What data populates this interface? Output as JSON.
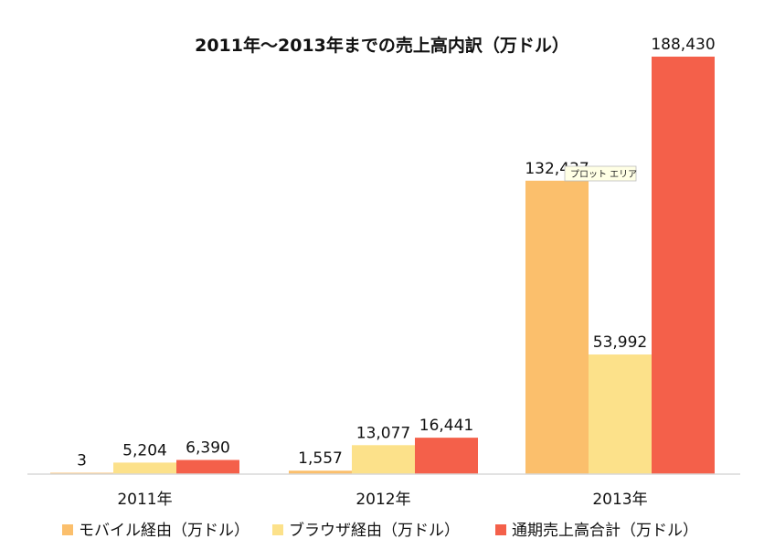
{
  "chart_data": {
    "type": "bar",
    "title": "2011年～2013年までの売上高内訳（万ドル）",
    "categories": [
      "2011年",
      "2012年",
      "2013年"
    ],
    "series": [
      {
        "name": "モバイル経由（万ドル）",
        "values": [
          3,
          1557,
          132437
        ],
        "color": "#FBBF6C"
      },
      {
        "name": "ブラウザ経由（万ドル）",
        "values": [
          5204,
          13077,
          53992
        ],
        "color": "#FCE18A"
      },
      {
        "name": "通期売上高合計（万ドル）",
        "values": [
          6390,
          16441,
          188430
        ],
        "color": "#F4604A"
      }
    ],
    "value_labels": [
      [
        "3",
        "5,204",
        "6,390"
      ],
      [
        "1,557",
        "13,077",
        "16,441"
      ],
      [
        "132,437",
        "53,992",
        "188,430"
      ]
    ],
    "ylim": [
      0,
      200000
    ],
    "grid": false,
    "legend_position": "bottom"
  },
  "tooltip": {
    "text": "プロット エリア"
  }
}
